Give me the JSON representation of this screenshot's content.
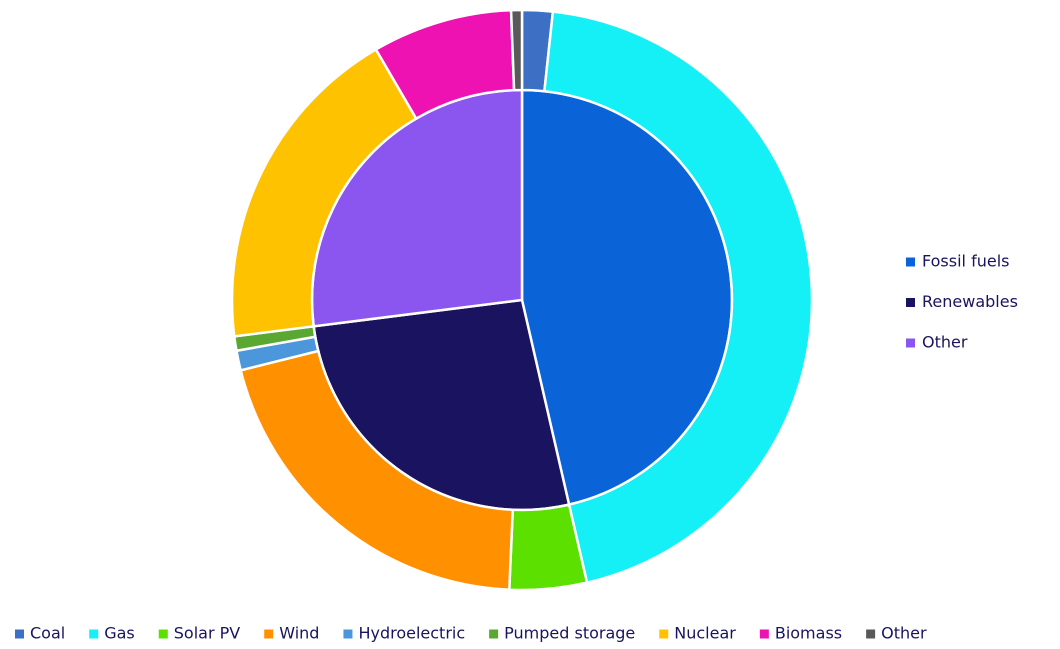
{
  "chart_data": [
    {
      "type": "pie",
      "legend": "right",
      "categories": [
        "Fossil fuels",
        "Renewables",
        "Other"
      ],
      "values": [
        46.4,
        26.6,
        27.0
      ],
      "colors": [
        "#0a64d8",
        "#1a1460",
        "#8b55f0"
      ]
    },
    {
      "type": "donut",
      "legend": "bottom",
      "categories": [
        "Coal",
        "Gas",
        "Solar PV",
        "Wind",
        "Hydroelectric",
        "Pumped storage",
        "Nuclear",
        "Biomass",
        "Other"
      ],
      "values": [
        1.7,
        44.7,
        4.3,
        20.4,
        1.1,
        0.8,
        18.6,
        7.8,
        0.6
      ],
      "colors": [
        "#3d6fc4",
        "#14f0f5",
        "#5ce000",
        "#ff9100",
        "#4c96dc",
        "#5aa832",
        "#ffc200",
        "#ee12b3",
        "#595959"
      ]
    }
  ]
}
